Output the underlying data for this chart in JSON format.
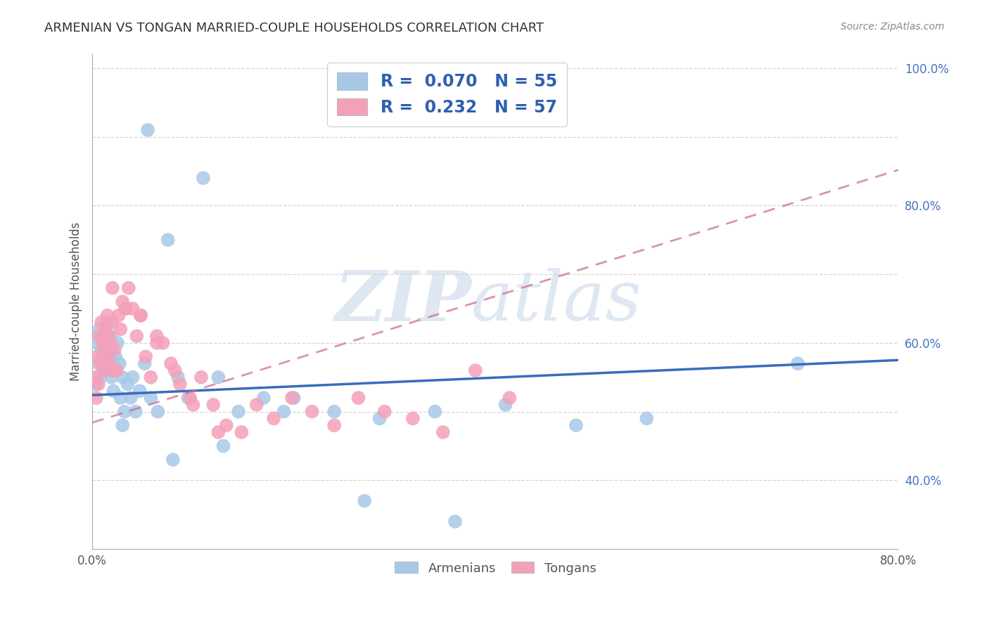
{
  "title": "ARMENIAN VS TONGAN MARRIED-COUPLE HOUSEHOLDS CORRELATION CHART",
  "source": "Source: ZipAtlas.com",
  "ylabel": "Married-couple Households",
  "armenian_R": 0.07,
  "armenian_N": 55,
  "tongan_R": 0.232,
  "tongan_N": 57,
  "armenian_color": "#a8c8e8",
  "tongan_color": "#f4a0b8",
  "armenian_line_color": "#3a6bbf",
  "tongan_line_color": "#cc7090",
  "legend_text_color": "#3060b0",
  "watermark_zip": "ZIP",
  "watermark_atlas": "atlas",
  "xlim": [
    0.0,
    0.8
  ],
  "ylim": [
    0.3,
    1.02
  ],
  "arm_x": [
    0.003,
    0.005,
    0.006,
    0.007,
    0.008,
    0.009,
    0.01,
    0.011,
    0.012,
    0.013,
    0.014,
    0.015,
    0.016,
    0.017,
    0.018,
    0.019,
    0.02,
    0.021,
    0.022,
    0.023,
    0.025,
    0.027,
    0.028,
    0.03,
    0.032,
    0.035,
    0.038,
    0.04,
    0.043,
    0.047,
    0.052,
    0.058,
    0.065,
    0.075,
    0.085,
    0.095,
    0.11,
    0.125,
    0.145,
    0.17,
    0.2,
    0.24,
    0.285,
    0.34,
    0.41,
    0.48,
    0.55,
    0.7,
    0.03,
    0.055,
    0.08,
    0.13,
    0.19,
    0.27,
    0.36
  ],
  "arm_y": [
    0.54,
    0.6,
    0.57,
    0.62,
    0.55,
    0.59,
    0.58,
    0.61,
    0.56,
    0.6,
    0.57,
    0.63,
    0.58,
    0.56,
    0.61,
    0.55,
    0.57,
    0.53,
    0.56,
    0.58,
    0.6,
    0.57,
    0.52,
    0.55,
    0.5,
    0.54,
    0.52,
    0.55,
    0.5,
    0.53,
    0.57,
    0.52,
    0.5,
    0.75,
    0.55,
    0.52,
    0.84,
    0.55,
    0.5,
    0.52,
    0.52,
    0.5,
    0.49,
    0.5,
    0.51,
    0.48,
    0.49,
    0.57,
    0.48,
    0.91,
    0.43,
    0.45,
    0.5,
    0.37,
    0.34
  ],
  "ton_x": [
    0.002,
    0.004,
    0.005,
    0.006,
    0.007,
    0.008,
    0.009,
    0.01,
    0.011,
    0.012,
    0.013,
    0.014,
    0.015,
    0.016,
    0.017,
    0.018,
    0.019,
    0.02,
    0.022,
    0.024,
    0.026,
    0.028,
    0.03,
    0.033,
    0.036,
    0.04,
    0.044,
    0.048,
    0.053,
    0.058,
    0.064,
    0.07,
    0.078,
    0.087,
    0.097,
    0.108,
    0.12,
    0.133,
    0.148,
    0.163,
    0.18,
    0.198,
    0.218,
    0.24,
    0.264,
    0.29,
    0.318,
    0.348,
    0.38,
    0.414,
    0.02,
    0.033,
    0.048,
    0.064,
    0.082,
    0.1,
    0.125
  ],
  "ton_y": [
    0.55,
    0.52,
    0.58,
    0.54,
    0.61,
    0.57,
    0.63,
    0.6,
    0.56,
    0.59,
    0.62,
    0.58,
    0.64,
    0.61,
    0.57,
    0.6,
    0.56,
    0.63,
    0.59,
    0.56,
    0.64,
    0.62,
    0.66,
    0.65,
    0.68,
    0.65,
    0.61,
    0.64,
    0.58,
    0.55,
    0.61,
    0.6,
    0.57,
    0.54,
    0.52,
    0.55,
    0.51,
    0.48,
    0.47,
    0.51,
    0.49,
    0.52,
    0.5,
    0.48,
    0.52,
    0.5,
    0.49,
    0.47,
    0.56,
    0.52,
    0.68,
    0.65,
    0.64,
    0.6,
    0.56,
    0.51,
    0.47
  ],
  "arm_line_x0": 0.0,
  "arm_line_x1": 0.8,
  "arm_line_y0": 0.524,
  "arm_line_y1": 0.575,
  "ton_line_x0": 0.0,
  "ton_line_x1": 0.8,
  "ton_line_y0": 0.484,
  "ton_line_y1": 0.852
}
